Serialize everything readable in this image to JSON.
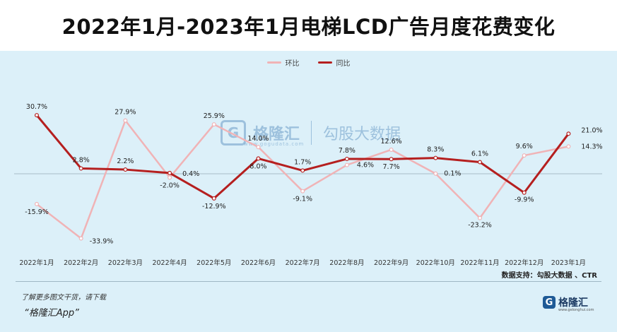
{
  "title": "2022年1月-2023年1月电梯LCD广告月度花费变化",
  "chart_data": {
    "type": "line",
    "categories": [
      "2022年1月",
      "2022年2月",
      "2022年3月",
      "2022年4月",
      "2022年5月",
      "2022年6月",
      "2022年7月",
      "2022年8月",
      "2022年9月",
      "2022年10月",
      "2022年11月",
      "2022年12月",
      "2023年1月"
    ],
    "series": [
      {
        "name": "环比",
        "color": "#f0b3b6",
        "values": [
          -15.9,
          -33.9,
          27.9,
          -2.0,
          25.9,
          14.0,
          -9.1,
          4.6,
          12.6,
          0.1,
          -23.2,
          9.6,
          14.3
        ],
        "labels": [
          "-15.9%",
          "-33.9%",
          "27.9%",
          "-2.0%",
          "25.9%",
          "14.0%",
          "-9.1%",
          "4.6%",
          "12.6%",
          "0.1%",
          "-23.2%",
          "9.6%",
          "14.3%"
        ]
      },
      {
        "name": "同比",
        "color": "#b51f1f",
        "values": [
          30.7,
          2.8,
          2.2,
          0.4,
          -12.9,
          8.0,
          1.7,
          7.8,
          7.7,
          8.3,
          6.1,
          -9.9,
          21.0
        ],
        "labels": [
          "30.7%",
          "2.8%",
          "2.2%",
          "0.4%",
          "-12.9%",
          "8.0%",
          "1.7%",
          "7.8%",
          "7.7%",
          "8.3%",
          "6.1%",
          "-9.9%",
          "21.0%"
        ]
      }
    ],
    "ylim": [
      -40,
      40
    ],
    "legend": "top-center",
    "grid": false
  },
  "source_text": "数据支持：勾股大数据 、CTR",
  "footer_note": "了解更多图文干货，请下载",
  "footer_app": "“格隆汇App”",
  "logo": {
    "mark": "G",
    "text": "格隆汇",
    "url": "www.gelonghui.com"
  },
  "watermark": {
    "text": "格隆汇",
    "text2": "勾股大数据",
    "url": "www.gogudata.com"
  }
}
